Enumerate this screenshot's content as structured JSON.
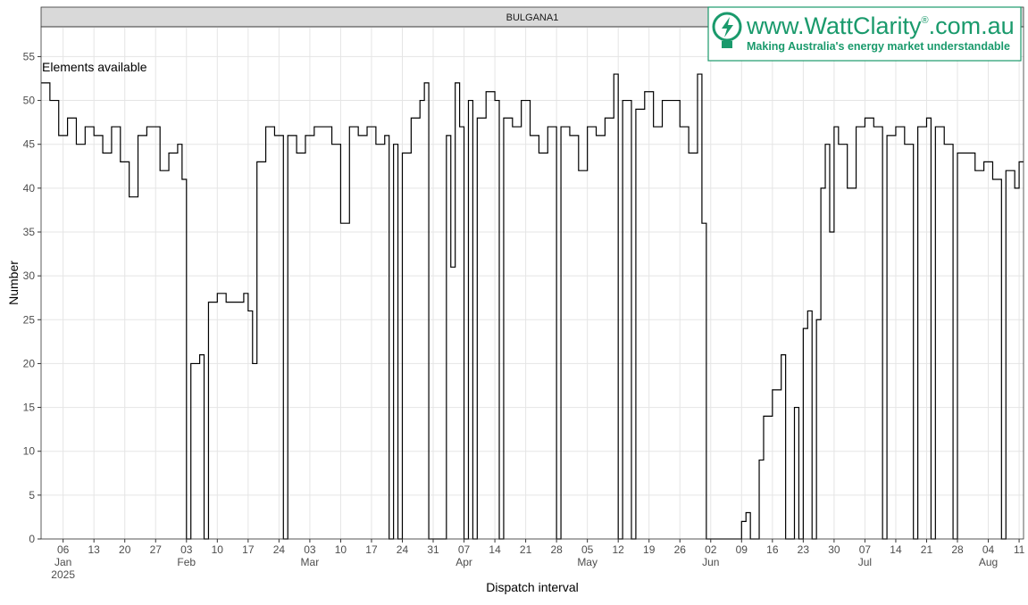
{
  "chart_data": {
    "type": "step",
    "panel_label": "BULGANA1",
    "annotation": "Elements available",
    "y_label": "Number",
    "x_label": "Dispatch interval",
    "color": "#000000",
    "grid": true,
    "ylim": [
      0,
      58.4
    ],
    "yticks": [
      0,
      5,
      10,
      15,
      20,
      25,
      30,
      35,
      40,
      45,
      50,
      55
    ],
    "xlim": [
      "2025-01-01",
      "2025-08-12"
    ],
    "xticks": [
      {
        "value": "2025-01-06",
        "label": "06"
      },
      {
        "value": "2025-01-13",
        "label": "13"
      },
      {
        "value": "2025-01-20",
        "label": "20"
      },
      {
        "value": "2025-01-27",
        "label": "27"
      },
      {
        "value": "2025-02-03",
        "label": "03"
      },
      {
        "value": "2025-02-10",
        "label": "10"
      },
      {
        "value": "2025-02-17",
        "label": "17"
      },
      {
        "value": "2025-02-24",
        "label": "24"
      },
      {
        "value": "2025-03-03",
        "label": "03"
      },
      {
        "value": "2025-03-10",
        "label": "10"
      },
      {
        "value": "2025-03-17",
        "label": "17"
      },
      {
        "value": "2025-03-24",
        "label": "24"
      },
      {
        "value": "2025-03-31",
        "label": "31"
      },
      {
        "value": "2025-04-07",
        "label": "07"
      },
      {
        "value": "2025-04-14",
        "label": "14"
      },
      {
        "value": "2025-04-21",
        "label": "21"
      },
      {
        "value": "2025-04-28",
        "label": "28"
      },
      {
        "value": "2025-05-05",
        "label": "05"
      },
      {
        "value": "2025-05-12",
        "label": "12"
      },
      {
        "value": "2025-05-19",
        "label": "19"
      },
      {
        "value": "2025-05-26",
        "label": "26"
      },
      {
        "value": "2025-06-02",
        "label": "02"
      },
      {
        "value": "2025-06-09",
        "label": "09"
      },
      {
        "value": "2025-06-16",
        "label": "16"
      },
      {
        "value": "2025-06-23",
        "label": "23"
      },
      {
        "value": "2025-06-30",
        "label": "30"
      },
      {
        "value": "2025-07-07",
        "label": "07"
      },
      {
        "value": "2025-07-14",
        "label": "14"
      },
      {
        "value": "2025-07-21",
        "label": "21"
      },
      {
        "value": "2025-07-28",
        "label": "28"
      },
      {
        "value": "2025-08-04",
        "label": "04"
      },
      {
        "value": "2025-08-11",
        "label": "11"
      }
    ],
    "x_month_labels": [
      {
        "value": "2025-01-06",
        "label": "Jan"
      },
      {
        "value": "2025-02-03",
        "label": "Feb"
      },
      {
        "value": "2025-03-03",
        "label": "Mar"
      },
      {
        "value": "2025-04-07",
        "label": "Apr"
      },
      {
        "value": "2025-05-05",
        "label": "May"
      },
      {
        "value": "2025-06-02",
        "label": "Jun"
      },
      {
        "value": "2025-07-07",
        "label": "Jul"
      },
      {
        "value": "2025-08-04",
        "label": "Aug"
      }
    ],
    "x_year_label": {
      "value": "2025-01-06",
      "label": "2025"
    },
    "x": [
      "2025-01-01",
      "2025-01-03",
      "2025-01-05",
      "2025-01-07",
      "2025-01-09",
      "2025-01-11",
      "2025-01-13",
      "2025-01-15",
      "2025-01-17",
      "2025-01-19",
      "2025-01-21",
      "2025-01-23",
      "2025-01-25",
      "2025-01-27",
      "2025-01-28",
      "2025-01-30",
      "2025-02-01",
      "2025-02-02",
      "2025-02-03",
      "2025-02-04",
      "2025-02-06",
      "2025-02-07",
      "2025-02-08",
      "2025-02-10",
      "2025-02-12",
      "2025-02-14",
      "2025-02-16",
      "2025-02-17",
      "2025-02-18",
      "2025-02-19",
      "2025-02-21",
      "2025-02-23",
      "2025-02-25",
      "2025-02-26",
      "2025-02-28",
      "2025-03-02",
      "2025-03-04",
      "2025-03-06",
      "2025-03-08",
      "2025-03-10",
      "2025-03-12",
      "2025-03-14",
      "2025-03-16",
      "2025-03-18",
      "2025-03-20",
      "2025-03-21",
      "2025-03-22",
      "2025-03-23",
      "2025-03-24",
      "2025-03-26",
      "2025-03-28",
      "2025-03-29",
      "2025-03-30",
      "2025-04-03",
      "2025-04-04",
      "2025-04-05",
      "2025-04-06",
      "2025-04-07",
      "2025-04-08",
      "2025-04-09",
      "2025-04-10",
      "2025-04-12",
      "2025-04-14",
      "2025-04-15",
      "2025-04-16",
      "2025-04-18",
      "2025-04-20",
      "2025-04-22",
      "2025-04-24",
      "2025-04-26",
      "2025-04-28",
      "2025-04-29",
      "2025-05-01",
      "2025-05-03",
      "2025-05-05",
      "2025-05-07",
      "2025-05-09",
      "2025-05-11",
      "2025-05-12",
      "2025-05-13",
      "2025-05-15",
      "2025-05-16",
      "2025-05-18",
      "2025-05-20",
      "2025-05-22",
      "2025-05-24",
      "2025-05-26",
      "2025-05-28",
      "2025-05-30",
      "2025-05-31",
      "2025-06-01",
      "2025-06-09",
      "2025-06-10",
      "2025-06-11",
      "2025-06-13",
      "2025-06-14",
      "2025-06-16",
      "2025-06-18",
      "2025-06-19",
      "2025-06-21",
      "2025-06-22",
      "2025-06-23",
      "2025-06-24",
      "2025-06-25",
      "2025-06-26",
      "2025-06-27",
      "2025-06-28",
      "2025-06-29",
      "2025-06-30",
      "2025-07-01",
      "2025-07-03",
      "2025-07-05",
      "2025-07-07",
      "2025-07-09",
      "2025-07-11",
      "2025-07-12",
      "2025-07-14",
      "2025-07-16",
      "2025-07-18",
      "2025-07-19",
      "2025-07-21",
      "2025-07-22",
      "2025-07-23",
      "2025-07-25",
      "2025-07-27",
      "2025-07-28",
      "2025-07-30",
      "2025-08-01",
      "2025-08-03",
      "2025-08-05",
      "2025-08-07",
      "2025-08-08",
      "2025-08-10",
      "2025-08-11"
    ],
    "values": [
      52,
      50,
      46,
      48,
      45,
      47,
      46,
      44,
      47,
      43,
      39,
      46,
      47,
      47,
      42,
      44,
      45,
      41,
      0,
      20,
      21,
      0,
      27,
      28,
      27,
      27,
      28,
      26,
      20,
      43,
      47,
      46,
      0,
      46,
      44,
      46,
      47,
      47,
      45,
      36,
      47,
      46,
      47,
      45,
      46,
      0,
      45,
      0,
      44,
      48,
      50,
      52,
      0,
      46,
      31,
      52,
      47,
      0,
      50,
      0,
      48,
      51,
      50,
      0,
      48,
      47,
      50,
      46,
      44,
      47,
      0,
      47,
      46,
      42,
      47,
      46,
      48,
      53,
      0,
      50,
      0,
      49,
      51,
      47,
      50,
      50,
      47,
      44,
      53,
      36,
      0,
      2,
      3,
      0,
      9,
      14,
      17,
      21,
      0,
      15,
      0,
      24,
      26,
      0,
      25,
      40,
      45,
      35,
      47,
      45,
      40,
      47,
      48,
      47,
      0,
      46,
      47,
      45,
      0,
      47,
      48,
      0,
      47,
      45,
      0,
      44,
      44,
      42,
      43,
      41,
      0,
      42,
      40,
      43
    ]
  },
  "logo": {
    "url_start": "www.WattClarity",
    "registered": "®",
    "url_end": ".com.au",
    "tagline": "Making Australia's energy market understandable"
  }
}
